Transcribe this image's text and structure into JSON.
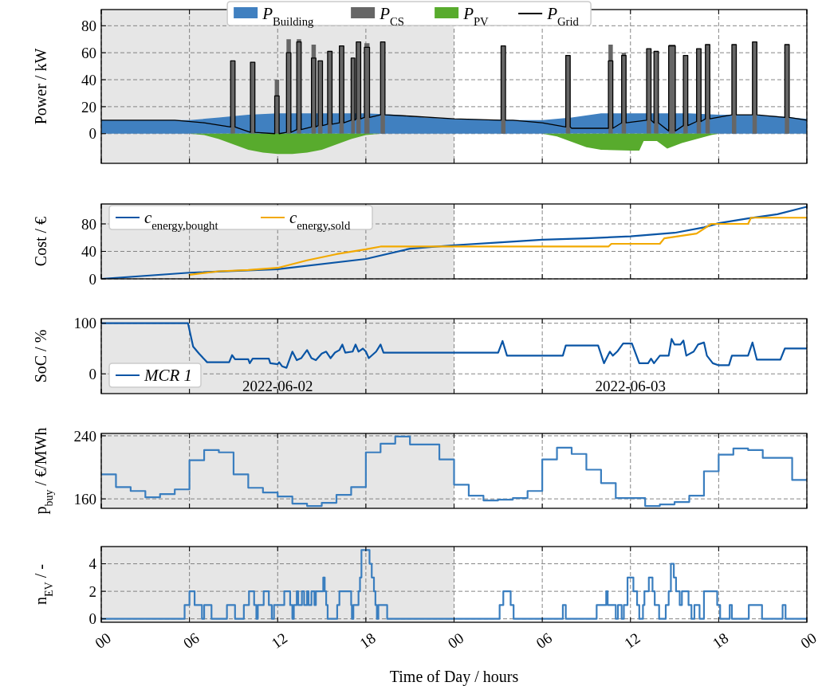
{
  "chart_data": [
    {
      "type": "area",
      "ylabel": "Power / kW",
      "xlim": [
        0,
        48
      ],
      "ylim": [
        -22,
        92
      ],
      "yticks": [
        0,
        20,
        40,
        60,
        80
      ],
      "xticks": [
        {
          "value": 0,
          "label": null
        },
        {
          "value": 6,
          "label": null
        },
        {
          "value": 12,
          "label": null
        },
        {
          "value": 18,
          "label": null
        },
        {
          "value": 24,
          "label": null
        },
        {
          "value": 30,
          "label": null
        },
        {
          "value": 36,
          "label": null
        },
        {
          "value": 42,
          "label": null
        },
        {
          "value": 48,
          "label": null
        }
      ],
      "tick_labels": "y",
      "grid": true,
      "legend": "top",
      "bands": [
        {
          "axis": "x",
          "from": 0,
          "to": 24,
          "color": "#e6e6e6"
        }
      ],
      "series": [
        {
          "name": "P$_{Building}$",
          "color": "#4080c0",
          "x": [
            0,
            6,
            8,
            10,
            12,
            15,
            18,
            20,
            22,
            24,
            28,
            30,
            32,
            34,
            36,
            40,
            42,
            44,
            46,
            48
          ],
          "values": [
            10,
            10,
            12,
            14,
            15,
            15,
            15,
            14,
            12,
            11,
            10,
            10,
            12,
            15,
            15,
            15,
            14,
            14,
            13,
            11
          ]
        },
        {
          "name": "P$_{CS}$",
          "color": "#666666",
          "x": [
            0,
            8.8,
            8.8,
            9.1,
            9.1,
            10.15,
            10.15,
            10.45,
            10.45,
            11.8,
            11.8,
            12.1,
            12.1,
            12.6,
            12.6,
            12.9,
            12.9,
            13.3,
            13.3,
            13.6,
            13.6,
            14.3,
            14.3,
            14.6,
            14.6,
            14.75,
            14.75,
            15.05,
            15.05,
            15.4,
            15.4,
            15.7,
            15.7,
            16.2,
            16.2,
            16.5,
            16.5,
            17.0,
            17.0,
            17.25,
            17.25,
            17.35,
            17.35,
            17.65,
            17.65,
            17.9,
            17.9,
            18.25,
            18.25,
            19.0,
            19.0,
            19.3,
            19.3,
            27.2,
            27.2,
            27.5,
            27.5,
            31.6,
            31.6,
            31.9,
            31.9,
            34.5,
            34.5,
            34.8,
            34.8,
            35.4,
            35.4,
            35.7,
            35.7,
            37.1,
            37.1,
            37.4,
            37.4,
            37.6,
            37.6,
            37.9,
            37.9,
            38.6,
            38.6,
            39.05,
            39.05,
            39.6,
            39.6,
            39.9,
            39.9,
            40.5,
            40.5,
            40.8,
            40.8,
            41.1,
            41.1,
            41.4,
            41.4,
            42.9,
            42.9,
            43.2,
            43.2,
            44.3,
            44.3,
            44.6,
            44.6,
            46.5,
            46.5,
            46.8,
            46.8,
            48
          ],
          "values": [
            0,
            0,
            54,
            54,
            0,
            0,
            53,
            53,
            0,
            0,
            40,
            40,
            0,
            0,
            70,
            70,
            0,
            0,
            70,
            70,
            0,
            0,
            66,
            66,
            0,
            0,
            54,
            54,
            0,
            0,
            61,
            61,
            0,
            0,
            65,
            65,
            0,
            0,
            56,
            56,
            0,
            0,
            68,
            68,
            0,
            0,
            67,
            67,
            0,
            0,
            68,
            68,
            0,
            0,
            65,
            65,
            0,
            0,
            58,
            58,
            0,
            0,
            66,
            66,
            0,
            0,
            60,
            60,
            0,
            0,
            63,
            63,
            0,
            0,
            61,
            61,
            0,
            0,
            66,
            66,
            0,
            0,
            58,
            58,
            0,
            0,
            63,
            63,
            0,
            0,
            66,
            66,
            0,
            0,
            66,
            66,
            0,
            0,
            68,
            68,
            0,
            0,
            66,
            66,
            0,
            0
          ]
        },
        {
          "name": "P$_{PV}$",
          "color": "#58ab2d",
          "x": [
            0,
            6,
            7,
            8,
            9,
            10,
            11,
            12,
            13,
            14,
            15,
            16,
            17,
            18,
            19,
            30,
            31,
            32,
            33,
            34,
            36,
            36.6,
            36.9,
            37.8,
            38.5,
            39.5,
            40.5,
            41.5,
            42,
            48
          ],
          "values": [
            0,
            0,
            -1,
            -4,
            -8,
            -12,
            -14,
            -15,
            -15,
            -14,
            -12,
            -8,
            -4,
            -1,
            0,
            0,
            -2,
            -6,
            -10,
            -12,
            -12.5,
            -12.5,
            -5.5,
            -5.5,
            -11,
            -7,
            -4,
            -1,
            0,
            0
          ]
        },
        {
          "name": "P$_{Grid}$",
          "type": "line",
          "color": "#000000",
          "x": [
            0,
            5,
            7,
            8.8,
            8.8,
            9.1,
            9.1,
            10.15,
            10.15,
            10.45,
            10.45,
            11.8,
            11.8,
            12.1,
            12.1,
            12.6,
            12.6,
            12.9,
            12.9,
            13.3,
            13.3,
            13.6,
            13.6,
            14.3,
            14.3,
            14.6,
            14.6,
            14.75,
            14.75,
            15.05,
            15.05,
            15.4,
            15.4,
            15.7,
            15.7,
            16.2,
            16.2,
            16.5,
            16.5,
            17.0,
            17.0,
            17.25,
            17.25,
            17.35,
            17.35,
            17.65,
            17.65,
            17.9,
            17.9,
            18.25,
            18.25,
            19.0,
            19.0,
            19.3,
            19.3,
            21,
            24,
            27.2,
            27.2,
            27.5,
            27.5,
            28,
            30,
            31.6,
            31.6,
            31.9,
            31.9,
            32,
            34.5,
            34.5,
            34.8,
            34.8,
            35.4,
            35.4,
            35.7,
            35.7,
            37.1,
            37.1,
            37.4,
            37.4,
            37.6,
            37.6,
            37.9,
            37.9,
            38.6,
            38.6,
            39.05,
            39.05,
            39.6,
            39.6,
            39.9,
            39.9,
            40.5,
            40.5,
            40.8,
            40.8,
            41.1,
            41.1,
            41.4,
            41.4,
            42.9,
            42.9,
            43.2,
            43.2,
            44.3,
            44.3,
            44.6,
            44.6,
            46.5,
            46.5,
            46.8,
            46.8,
            48
          ],
          "values": [
            10,
            10,
            8,
            5,
            54,
            54,
            5,
            1,
            53,
            53,
            1,
            0,
            28,
            28,
            0,
            1,
            60,
            60,
            1,
            3,
            68,
            68,
            3,
            5,
            56,
            56,
            5,
            6,
            54,
            54,
            6,
            7,
            61,
            61,
            7,
            8,
            65,
            65,
            8,
            10,
            56,
            56,
            10,
            11,
            68,
            68,
            11,
            12,
            64,
            64,
            12,
            14,
            68,
            68,
            14,
            13,
            11,
            10,
            65,
            65,
            10,
            10,
            8,
            5,
            58,
            58,
            5,
            4,
            4,
            54,
            54,
            4,
            8,
            58,
            58,
            8,
            10,
            63,
            63,
            10,
            8,
            61,
            61,
            8,
            2,
            65,
            65,
            2,
            6,
            58,
            58,
            6,
            9,
            63,
            63,
            9,
            11,
            66,
            66,
            11,
            14,
            66,
            66,
            14,
            14,
            68,
            68,
            14,
            12,
            66,
            66,
            12,
            10
          ]
        }
      ]
    },
    {
      "type": "line",
      "ylabel": "Cost / €",
      "xlim": [
        0,
        48
      ],
      "ylim": [
        0,
        109
      ],
      "yticks": [
        0,
        40,
        80
      ],
      "xticks": [
        {
          "value": 0,
          "label": null
        },
        {
          "value": 6,
          "label": null
        },
        {
          "value": 12,
          "label": null
        },
        {
          "value": 18,
          "label": null
        },
        {
          "value": 24,
          "label": null
        },
        {
          "value": 30,
          "label": null
        },
        {
          "value": 36,
          "label": null
        },
        {
          "value": 42,
          "label": null
        },
        {
          "value": 48,
          "label": null
        }
      ],
      "tick_labels": "y",
      "grid": true,
      "legend": "top left",
      "bands": [
        {
          "axis": "x",
          "from": 0,
          "to": 24,
          "color": "#e6e6e6"
        }
      ],
      "series": [
        {
          "name": "c$_{energy,bought}$",
          "color": "#0a55a5",
          "x": [
            0,
            6,
            12,
            18,
            21,
            24,
            27,
            30,
            33,
            36,
            39,
            41,
            42,
            44,
            46,
            48
          ],
          "values": [
            0,
            9,
            14,
            29,
            44,
            49,
            53,
            57,
            59,
            62,
            67,
            75,
            81,
            88,
            94,
            105
          ]
        },
        {
          "name": "c$_{energy,sold}$",
          "color": "#f2a900",
          "x": [
            6,
            8,
            10,
            12,
            14,
            16,
            18,
            19,
            34.5,
            34.7,
            38,
            38.3,
            40.5,
            41.5,
            44,
            44.2,
            48
          ],
          "values": [
            6,
            11,
            13,
            16,
            27,
            36,
            43,
            47,
            47,
            51,
            51,
            59,
            66,
            80,
            80,
            89,
            89
          ]
        }
      ]
    },
    {
      "type": "line",
      "ylabel": "SoC / %",
      "xlim": [
        0,
        48
      ],
      "ylim": [
        -39,
        109
      ],
      "yticks": [
        0,
        100
      ],
      "xticks": [
        {
          "value": 0,
          "label": null
        },
        {
          "value": 6,
          "label": null
        },
        {
          "value": 12,
          "label": null
        },
        {
          "value": 18,
          "label": null
        },
        {
          "value": 24,
          "label": null
        },
        {
          "value": 30,
          "label": null
        },
        {
          "value": 36,
          "label": null
        },
        {
          "value": 42,
          "label": null
        },
        {
          "value": 48,
          "label": null
        }
      ],
      "tick_labels": "y",
      "grid": true,
      "legend": "bottom left",
      "bands": [
        {
          "axis": "x",
          "from": 0,
          "to": 24,
          "color": "#e6e6e6"
        }
      ],
      "annotations": [
        "2022-06-02",
        "2022-06-03"
      ],
      "series": [
        {
          "name": "MCR 1",
          "color": "#0a55a5",
          "x": [
            0,
            5.9,
            6.25,
            6.65,
            7.2,
            8.7,
            8.9,
            9.1,
            10.0,
            10.1,
            10.3,
            11.4,
            11.5,
            12.0,
            12.1,
            12.3,
            12.6,
            13.0,
            13.3,
            13.6,
            14.0,
            14.3,
            14.6,
            15.0,
            15.3,
            15.6,
            15.9,
            16.2,
            16.4,
            16.6,
            17.1,
            17.3,
            17.5,
            17.8,
            18.0,
            18.2,
            18.7,
            19.0,
            19.2,
            27.0,
            27.3,
            27.6,
            31.4,
            31.6,
            33.8,
            34.2,
            34.6,
            34.8,
            35.1,
            35.5,
            36.1,
            36.6,
            37.2,
            37.4,
            37.6,
            38.0,
            38.6,
            38.8,
            39.0,
            39.4,
            39.6,
            39.8,
            40.3,
            40.6,
            41.0,
            41.2,
            41.6,
            42.0,
            42.7,
            42.9,
            44.0,
            44.3,
            44.6,
            46.2,
            46.5,
            48
          ],
          "values": [
            100,
            100,
            54,
            40,
            23,
            23,
            37,
            29,
            29,
            21,
            30,
            30,
            21,
            19,
            23,
            15,
            12,
            44,
            27,
            31,
            47,
            31,
            27,
            40,
            44,
            31,
            42,
            47,
            58,
            42,
            44,
            58,
            44,
            50,
            44,
            31,
            44,
            58,
            42,
            42,
            65,
            36,
            36,
            56,
            56,
            21,
            44,
            36,
            44,
            60,
            60,
            21,
            21,
            30,
            21,
            36,
            36,
            69,
            58,
            58,
            66,
            36,
            44,
            58,
            62,
            36,
            21,
            17,
            17,
            36,
            36,
            62,
            28,
            28,
            50,
            50
          ]
        }
      ]
    },
    {
      "type": "step",
      "ylabel": "p$_{buy}$ / €/MWh",
      "xlim": [
        0,
        48
      ],
      "ylim": [
        148,
        243
      ],
      "yticks": [
        160,
        240
      ],
      "xticks": [
        {
          "value": 0,
          "label": null
        },
        {
          "value": 6,
          "label": null
        },
        {
          "value": 12,
          "label": null
        },
        {
          "value": 18,
          "label": null
        },
        {
          "value": 24,
          "label": null
        },
        {
          "value": 30,
          "label": null
        },
        {
          "value": 36,
          "label": null
        },
        {
          "value": 42,
          "label": null
        },
        {
          "value": 48,
          "label": null
        }
      ],
      "tick_labels": "y",
      "grid": true,
      "bands": [
        {
          "axis": "x",
          "from": 0,
          "to": 24,
          "color": "#e6e6e6"
        }
      ],
      "series": [
        {
          "color": "#3a7ebf",
          "x": [
            0,
            1,
            2,
            3,
            4,
            5,
            6,
            7,
            8,
            9,
            10,
            11,
            12,
            13,
            14,
            15,
            16,
            17,
            18,
            19,
            20,
            21,
            22,
            23,
            24,
            25,
            26,
            27,
            28,
            29,
            30,
            31,
            32,
            33,
            34,
            35,
            36,
            37,
            38,
            39,
            40,
            41,
            42,
            43,
            44,
            45,
            46,
            47,
            48
          ],
          "values": [
            191,
            175,
            170,
            162,
            166,
            172,
            209,
            222,
            219,
            191,
            174,
            168,
            163,
            154,
            151,
            155,
            165,
            175,
            219,
            230,
            239,
            229,
            229,
            210,
            178,
            164,
            158,
            159,
            161,
            170,
            210,
            225,
            217,
            197,
            180,
            161,
            161,
            151,
            153,
            156,
            164,
            195,
            216,
            224,
            222,
            212,
            212,
            184,
            184
          ]
        }
      ]
    },
    {
      "type": "step",
      "ylabel": "n$_{EV}$ / -",
      "xlabel": "Time of Day / hours",
      "xlim": [
        0,
        48
      ],
      "ylim": [
        -0.25,
        5.25
      ],
      "yticks": [
        0,
        2,
        4
      ],
      "xticks": [
        {
          "value": 0,
          "label": "00"
        },
        {
          "value": 6,
          "label": "06"
        },
        12,
        18,
        {
          "value": 24,
          "label": "00"
        },
        {
          "value": 30,
          "label": "06"
        },
        {
          "value": 36,
          "label": "12"
        },
        {
          "value": 42,
          "label": "18"
        },
        {
          "value": 48,
          "label": "00"
        }
      ],
      "grid": true,
      "bands": [
        {
          "axis": "x",
          "from": 0,
          "to": 24,
          "color": "#e6e6e6"
        }
      ],
      "series": [
        {
          "color": "#3a7ebf",
          "x": [
            0,
            5.67,
            6.0,
            6.35,
            6.85,
            7.0,
            7.5,
            8.55,
            9.1,
            9.7,
            10.05,
            10.4,
            10.55,
            10.65,
            11.05,
            11.4,
            11.6,
            11.75,
            12.45,
            12.85,
            13.0,
            13.1,
            13.3,
            13.4,
            13.65,
            13.8,
            14.0,
            14.1,
            14.3,
            14.5,
            14.6,
            15.1,
            15.2,
            15.3,
            15.4,
            16.05,
            16.2,
            17.0,
            17.05,
            17.15,
            17.5,
            17.6,
            17.7,
            18.25,
            18.4,
            18.55,
            18.65,
            18.75,
            18.85,
            19.45,
            27.1,
            27.35,
            27.85,
            28.05,
            31.4,
            31.6,
            33.7,
            34.35,
            34.45,
            35.0,
            35.15,
            35.4,
            35.55,
            35.8,
            36.2,
            36.45,
            36.6,
            36.85,
            36.95,
            37.25,
            37.5,
            37.65,
            37.95,
            38.4,
            38.6,
            38.75,
            38.95,
            39.1,
            39.35,
            39.5,
            39.95,
            40.15,
            40.35,
            40.7,
            41.0,
            41.9,
            42.1,
            42.75,
            42.9,
            44.05,
            44.95,
            46.35,
            46.55,
            48
          ],
          "values": [
            0,
            1,
            2,
            1,
            0,
            1,
            0,
            1,
            0,
            1,
            2,
            1,
            0,
            1,
            2,
            1,
            0,
            1,
            2,
            1,
            0,
            1,
            2,
            1,
            2,
            1,
            2,
            1,
            2,
            1,
            2,
            3,
            2,
            1,
            0,
            1,
            2,
            1,
            0,
            1,
            2,
            3,
            5,
            4,
            3,
            2,
            1,
            0,
            1,
            0,
            1,
            2,
            1,
            0,
            1,
            0,
            1,
            2,
            1,
            0,
            1,
            0,
            1,
            3,
            2,
            1,
            0,
            1,
            2,
            3,
            2,
            1,
            0,
            1,
            2,
            4,
            3,
            2,
            1,
            2,
            1,
            0,
            1,
            0,
            2,
            1,
            0,
            1,
            0,
            1,
            0,
            1,
            0,
            0
          ]
        }
      ]
    }
  ]
}
